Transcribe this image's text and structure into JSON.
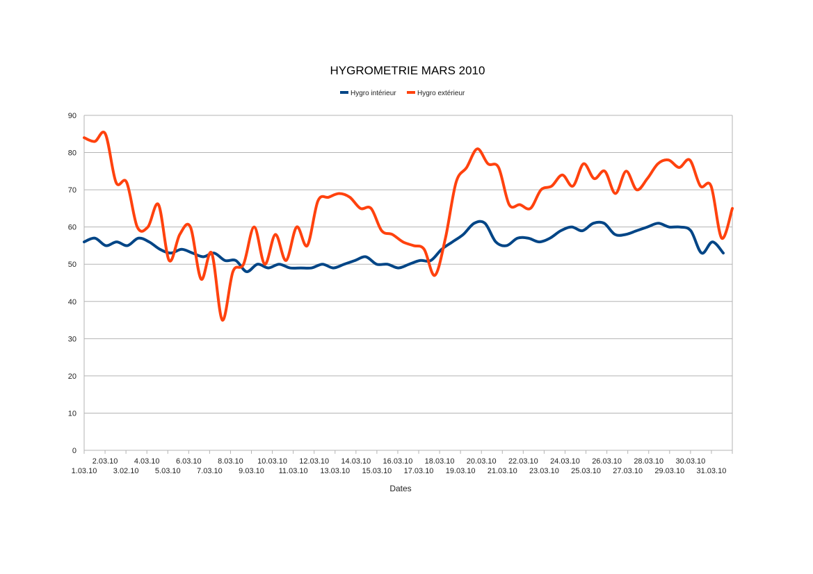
{
  "chart_data": {
    "type": "line",
    "title": "HYGROMETRIE MARS 2010",
    "xlabel": "Dates",
    "ylabel": "",
    "ylim": [
      0,
      90
    ],
    "yticks": [
      0,
      10,
      20,
      30,
      40,
      50,
      60,
      70,
      80,
      90
    ],
    "grid": true,
    "legend_position": "top-center",
    "x_tick_labels": [
      "1.03.10",
      "2.03.10",
      "3.02.10",
      "4.03.10",
      "5.03.10",
      "6.03.10",
      "7.03.10",
      "8.03.10",
      "9.03.10",
      "10.03.10",
      "11.03.10",
      "12.03.10",
      "13.03.10",
      "14.03.10",
      "15.03.10",
      "16.03.10",
      "17.03.10",
      "18.03.10",
      "19.03.10",
      "20.03.10",
      "21.03.10",
      "22.03.10",
      "23.03.10",
      "24.03.10",
      "25.03.10",
      "26.03.10",
      "27.03.10",
      "28.03.10",
      "29.03.10",
      "30.03.10",
      "31.03.10"
    ],
    "series": [
      {
        "name": "Hygro intérieur",
        "color": "#004586",
        "values": [
          56,
          57,
          55,
          56,
          55,
          57,
          56,
          54,
          53,
          54,
          53,
          52,
          53,
          51,
          51,
          48,
          50,
          49,
          50,
          49,
          49,
          49,
          50,
          49,
          50,
          51,
          52,
          50,
          50,
          49,
          50,
          51,
          51,
          54,
          56,
          58,
          61,
          61,
          56,
          55,
          57,
          57,
          56,
          57,
          59,
          60,
          59,
          61,
          61,
          58,
          58,
          59,
          60,
          61,
          60,
          60,
          59,
          53,
          56,
          53
        ]
      },
      {
        "name": "Hygro extérieur",
        "color": "#ff420e",
        "values": [
          84,
          83,
          85,
          72,
          72,
          60,
          60,
          66,
          51,
          58,
          60,
          46,
          53,
          35,
          48,
          50,
          60,
          50,
          58,
          51,
          60,
          55,
          67,
          68,
          69,
          68,
          65,
          65,
          59,
          58,
          56,
          55,
          54,
          47,
          57,
          72,
          76,
          81,
          77,
          76,
          66,
          66,
          65,
          70,
          71,
          74,
          71,
          77,
          73,
          75,
          69,
          75,
          70,
          73,
          77,
          78,
          76,
          78,
          71,
          71,
          57,
          65
        ]
      }
    ]
  }
}
